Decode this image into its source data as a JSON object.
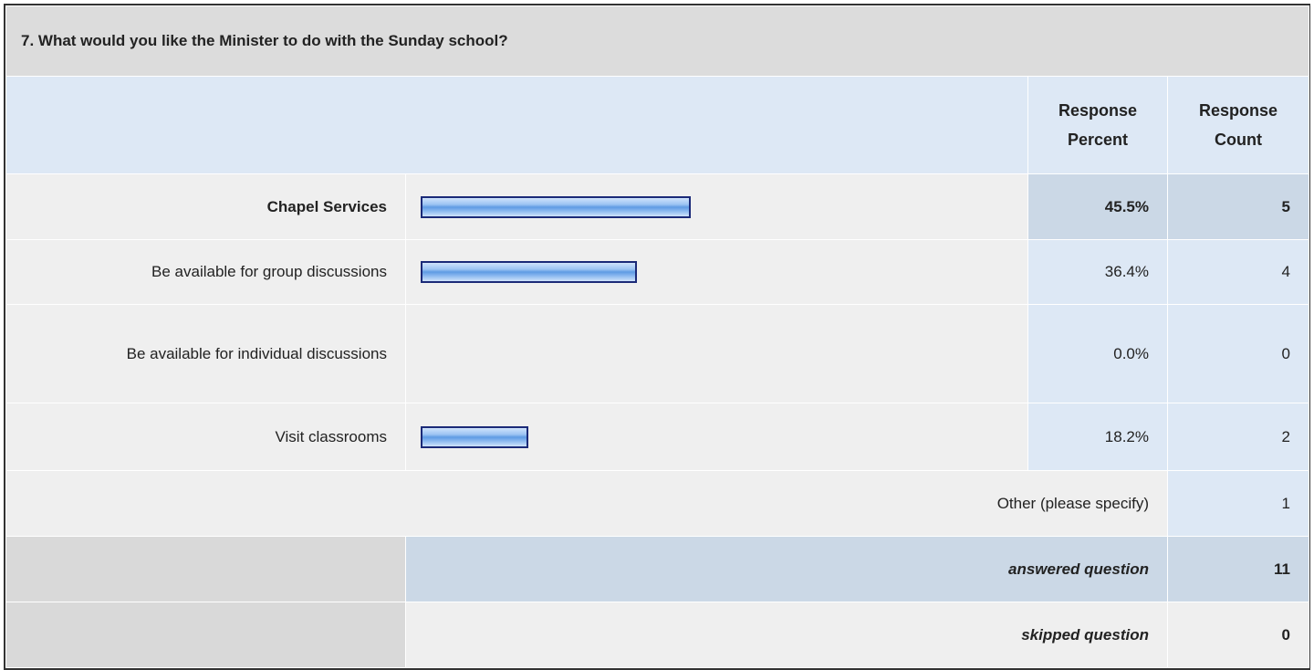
{
  "title": "7. What would you like the Minister to do with the Sunday school?",
  "header": {
    "percent": "Response Percent",
    "count": "Response Count"
  },
  "rows": [
    {
      "label": "Chapel Services",
      "percent": 45.5,
      "percent_label": "45.5%",
      "count": 5
    },
    {
      "label": "Be available for group discussions",
      "percent": 36.4,
      "percent_label": "36.4%",
      "count": 4
    },
    {
      "label": "Be available for individual discussions",
      "percent": 0,
      "percent_label": "0.0%",
      "count": 0
    },
    {
      "label": "Visit classrooms",
      "percent": 18.2,
      "percent_label": "18.2%",
      "count": 2
    }
  ],
  "other": {
    "label": "Other (please specify)",
    "count": 1
  },
  "answered": {
    "label": "answered question",
    "count": 11
  },
  "skipped": {
    "label": "skipped question",
    "count": 0
  }
}
